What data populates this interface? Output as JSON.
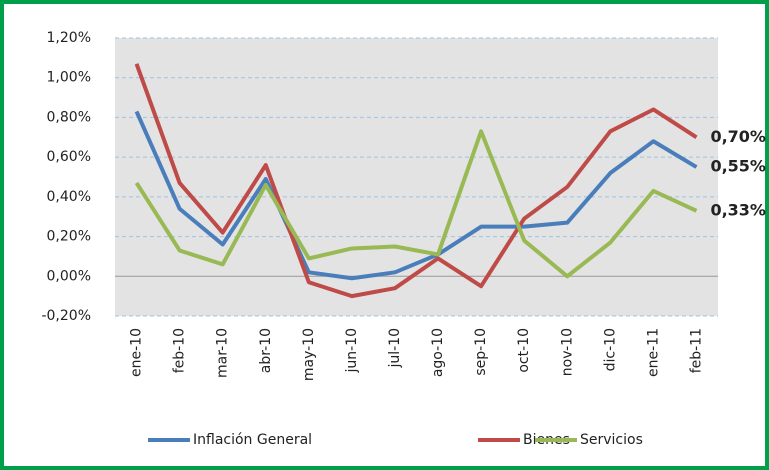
{
  "chart_data": {
    "type": "line",
    "categories": [
      "ene-10",
      "feb-10",
      "mar-10",
      "abr-10",
      "may-10",
      "jun-10",
      "jul-10",
      "ago-10",
      "sep-10",
      "oct-10",
      "nov-10",
      "dic-10",
      "ene-11",
      "feb-11"
    ],
    "series": [
      {
        "name": "Inflación General",
        "color": "#4a7ebb",
        "label_color": "#1f3d6b",
        "values": [
          0.83,
          0.34,
          0.16,
          0.49,
          0.02,
          -0.01,
          0.02,
          0.11,
          0.25,
          0.25,
          0.27,
          0.52,
          0.68,
          0.55
        ],
        "value_labels": [
          null,
          null,
          null,
          null,
          null,
          null,
          null,
          null,
          null,
          null,
          null,
          null,
          null,
          "0,55%"
        ]
      },
      {
        "name": "Bienes",
        "color": "#be4b48",
        "label_color": "#c00000",
        "values": [
          1.07,
          0.47,
          0.22,
          0.56,
          -0.03,
          -0.1,
          -0.06,
          0.09,
          -0.05,
          0.29,
          0.45,
          0.73,
          0.84,
          0.7
        ],
        "value_labels": [
          null,
          null,
          null,
          null,
          null,
          null,
          null,
          null,
          null,
          null,
          null,
          null,
          null,
          "0,70%"
        ]
      },
      {
        "name": "Servicios",
        "color": "#98b954",
        "label_color": "#77a03a",
        "values": [
          0.47,
          0.13,
          0.06,
          0.46,
          0.09,
          0.14,
          0.15,
          0.11,
          0.73,
          0.18,
          0.0,
          0.17,
          0.43,
          0.33
        ],
        "value_labels": [
          null,
          null,
          null,
          null,
          null,
          null,
          null,
          null,
          null,
          null,
          null,
          null,
          null,
          "0,33%"
        ]
      }
    ],
    "ylim": [
      -0.2,
      1.2
    ],
    "yticks": [
      {
        "value": -0.2,
        "label": "-0,20%"
      },
      {
        "value": 0,
        "label": "0,00%"
      },
      {
        "value": 0.2,
        "label": "0,20%"
      },
      {
        "value": 0.4,
        "label": "0,40%"
      },
      {
        "value": 0.6,
        "label": "0,60%"
      },
      {
        "value": 0.8,
        "label": "0,80%"
      },
      {
        "value": 1.0,
        "label": "1,00%"
      },
      {
        "value": 1.2,
        "label": "1,20%"
      }
    ],
    "grid": true,
    "legend": "bottom"
  }
}
